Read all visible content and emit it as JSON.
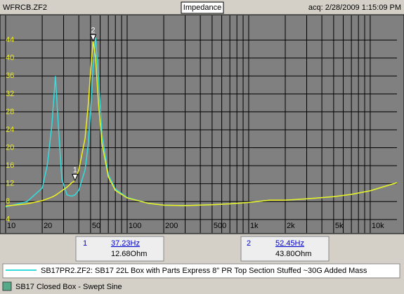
{
  "window": {
    "file": "WFRCB.ZF2",
    "title": "Impedance",
    "acq": "acq: 2/28/2009 1:15:09 PM"
  },
  "status": "SB17 Closed Box - Swept Sine",
  "chart_data": {
    "type": "line",
    "xscale": "log",
    "grid": true,
    "background": "#808080",
    "x": [
      10,
      15,
      20,
      22,
      24,
      25.7,
      27,
      29,
      32,
      35,
      37.23,
      40,
      45,
      48,
      50,
      52.45,
      55,
      58,
      62,
      70,
      80,
      100,
      150,
      200,
      300,
      500,
      700,
      1000,
      1500,
      2000,
      3000,
      5000,
      7000,
      10000,
      16600
    ],
    "series": [
      {
        "name": "SB17PR2.ZF2:  SB17 22L Box with Parts Express 8\" PR Top Section Stuffed ~30G Added Mass",
        "color": "#33dddd",
        "values": [
          6.8,
          8,
          11,
          16,
          25,
          36,
          26,
          13,
          9.5,
          9.2,
          9.5,
          10.5,
          15,
          21,
          28,
          38,
          44.5,
          36,
          23,
          14,
          10.8,
          8.9,
          7.6,
          7.2,
          7.1,
          7.3,
          7.5,
          7.8,
          8.3,
          8.3,
          8.6,
          9.1,
          9.6,
          10.4,
          12.2
        ]
      },
      {
        "color": "#f0f020",
        "values": [
          7,
          7.5,
          8.2,
          8.6,
          9,
          9.4,
          9.8,
          10.4,
          11.2,
          12.2,
          12.68,
          15,
          22,
          30,
          37,
          43.8,
          40,
          30,
          21,
          13.5,
          10.5,
          8.8,
          7.6,
          7.2,
          7.1,
          7.3,
          7.5,
          7.8,
          8.3,
          8.3,
          8.6,
          9.1,
          9.6,
          10.4,
          12.2
        ]
      }
    ],
    "xlim": [
      10,
      16600
    ],
    "ylim": [
      1,
      49.5
    ],
    "xticks": [
      10,
      20,
      50,
      100,
      200,
      500,
      {
        "value": 1000,
        "label": "1k"
      },
      {
        "value": 2000,
        "label": "2k"
      },
      {
        "value": 5000,
        "label": "5k"
      },
      {
        "value": 10000,
        "label": "10k"
      }
    ],
    "xgrid": [
      30,
      40,
      60,
      70,
      80,
      90,
      300,
      400,
      600,
      700,
      800,
      900,
      3000,
      4000,
      6000,
      7000,
      8000,
      9000
    ],
    "yticks": [
      4,
      8,
      12,
      16,
      20,
      24,
      28,
      32,
      36,
      40,
      44
    ],
    "cursors": [
      {
        "label": "1",
        "x": 37.23,
        "y": 12.68,
        "freq_label": "37.23Hz",
        "imp_label": "12.68Ohm"
      },
      {
        "label": "2",
        "x": 52.45,
        "y": 43.8,
        "freq_label": "52.45Hz",
        "imp_label": "43.80Ohm"
      }
    ]
  }
}
